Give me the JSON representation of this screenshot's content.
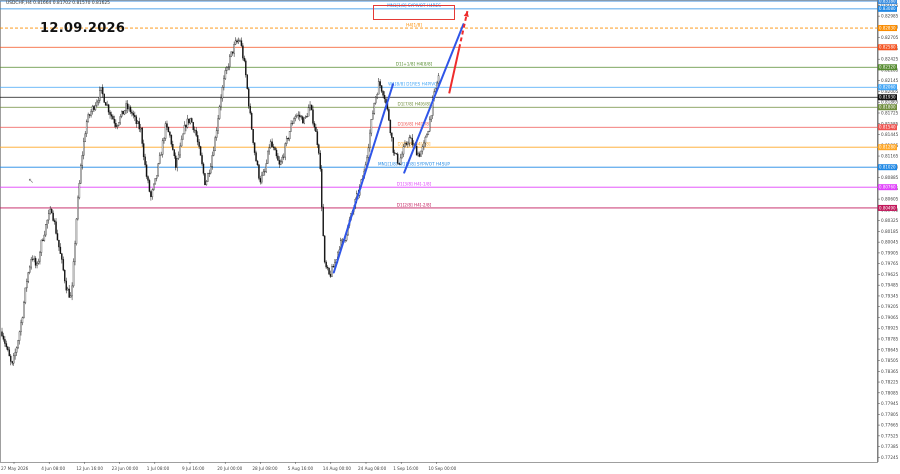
{
  "header": {
    "symbol_info": "USDCHF,H4  0.81664 0.81702 0.81570 0.81625",
    "date_stamp": "12.09.2026"
  },
  "colors": {
    "candle": "#111111",
    "trend_blue": "#2f55e8",
    "projection_red": "#ee2c2c",
    "background": "#ffffff"
  },
  "chart_data": {
    "type": "candlestick",
    "symbol": "USDCHF",
    "timeframe": "H4",
    "ylim": [
      0.77185,
      0.83195
    ],
    "y_ticks": [
      "0.83125",
      "0.82985",
      "0.82845",
      "0.82705",
      "0.82565",
      "0.82425",
      "0.82285",
      "0.82145",
      "0.82005",
      "0.81865",
      "0.81725",
      "0.81585",
      "0.81445",
      "0.81305",
      "0.81165",
      "0.81025",
      "0.80885",
      "0.80745",
      "0.80605",
      "0.80465",
      "0.80325",
      "0.80185",
      "0.80045",
      "0.79905",
      "0.79765",
      "0.79625",
      "0.79485",
      "0.79345",
      "0.79205",
      "0.79065",
      "0.78925",
      "0.78785",
      "0.78645",
      "0.78505",
      "0.78365",
      "0.78225",
      "0.78085",
      "0.77945",
      "0.77805",
      "0.77665",
      "0.77525",
      "0.77385",
      "0.77245"
    ],
    "x_ticks": [
      "27 May 2026",
      "4 Jun 08:00",
      "12 Jun 16:00",
      "23 Jun 00:00",
      "1 Jul 08:00",
      "9 Jul 16:00",
      "20 Jul 00:00",
      "28 Jul 08:00",
      "5 Aug 16:00",
      "14 Aug 00:00",
      "24 Aug 08:00",
      "1 Sep 16:00",
      "10 Sep 00:00"
    ],
    "close_path": [
      0.7888,
      0.7865,
      0.7842,
      0.787,
      0.7905,
      0.7955,
      0.7988,
      0.797,
      0.8005,
      0.803,
      0.8048,
      0.8015,
      0.798,
      0.7945,
      0.793,
      0.8035,
      0.811,
      0.816,
      0.8175,
      0.8188,
      0.8201,
      0.8185,
      0.817,
      0.8158,
      0.8168,
      0.818,
      0.8175,
      0.816,
      0.815,
      0.8095,
      0.8062,
      0.8085,
      0.812,
      0.8155,
      0.814,
      0.8102,
      0.8128,
      0.8158,
      0.8165,
      0.8148,
      0.8115,
      0.808,
      0.8105,
      0.814,
      0.819,
      0.8222,
      0.8245,
      0.8262,
      0.8268,
      0.823,
      0.817,
      0.8118,
      0.8085,
      0.8095,
      0.8135,
      0.812,
      0.8102,
      0.8125,
      0.815,
      0.817,
      0.8168,
      0.8162,
      0.8182,
      0.8156,
      0.812,
      0.7975,
      0.796,
      0.7975,
      0.8,
      0.8008,
      0.803,
      0.8052,
      0.8072,
      0.8095,
      0.8138,
      0.8185,
      0.8212,
      0.8198,
      0.8165,
      0.812,
      0.8108,
      0.8125,
      0.814,
      0.813,
      0.8118,
      0.8128,
      0.8155,
      0.8192,
      0.822
    ],
    "levels": [
      {
        "price": 0.8318,
        "color": "#3d8fe0",
        "label": "",
        "tag": "0.83180"
      },
      {
        "price": 0.8308,
        "color": "#1e88e5",
        "label": "MN1[1/8] SYPIVOT H4RES",
        "tag": "0.83080"
      },
      {
        "price": 0.8283,
        "color": "#fb8c00",
        "label": "H4[1/8]",
        "tag": "0.82830",
        "dashed": true
      },
      {
        "price": 0.8258,
        "color": "#f4511e",
        "label": "",
        "tag": "0.82580"
      },
      {
        "price": 0.8232,
        "color": "#558b2f",
        "label": "D1[+1/8] H4[8/8]",
        "tag": "0.82320"
      },
      {
        "price": 0.8206,
        "color": "#42a5f5",
        "label": "W1[8/8] D1RES H4PIVOT",
        "tag": "0.82060"
      },
      {
        "price": 0.8193,
        "color": "#111111",
        "label": "",
        "tag": "0.81930"
      },
      {
        "price": 0.818,
        "color": "#6d8c3a",
        "label": "D1[7/8] H4[6/8]",
        "tag": "0.81800"
      },
      {
        "price": 0.8154,
        "color": "#ef5350",
        "label": "D1[6/8] H4[5/8]",
        "tag": "0.81540"
      },
      {
        "price": 0.8128,
        "color": "#ffa726",
        "label": "D1[5/8] H4[4/8]",
        "tag": "0.81280"
      },
      {
        "price": 0.8102,
        "color": "#1e88e5",
        "label": "MN1[1/8] W1[2/8] SYPIVOT H4SUP",
        "tag": "0.81020"
      },
      {
        "price": 0.8076,
        "color": "#e040fb",
        "label": "D1[3/8] H4[-1/8]",
        "tag": "0.80760"
      },
      {
        "price": 0.8049,
        "color": "#c2185b",
        "label": "D1[2/8] H4[-2/8]",
        "tag": "0.80490"
      }
    ],
    "trend_lines": [
      {
        "from": [
          "14 Aug 00:00",
          0.7965
        ],
        "to": [
          "24 Aug 08:00",
          0.821
        ]
      },
      {
        "from": [
          "1 Sep 16:00",
          0.8095
        ],
        "to": [
          "10 Sep 00:00",
          0.8288
        ]
      }
    ],
    "projection": {
      "from": [
        "1 Sep 16:00",
        0.8198
      ],
      "to": [
        "10 Sep 00:00",
        0.8305
      ],
      "style": "arrow"
    },
    "grid": false,
    "legend": "none"
  }
}
